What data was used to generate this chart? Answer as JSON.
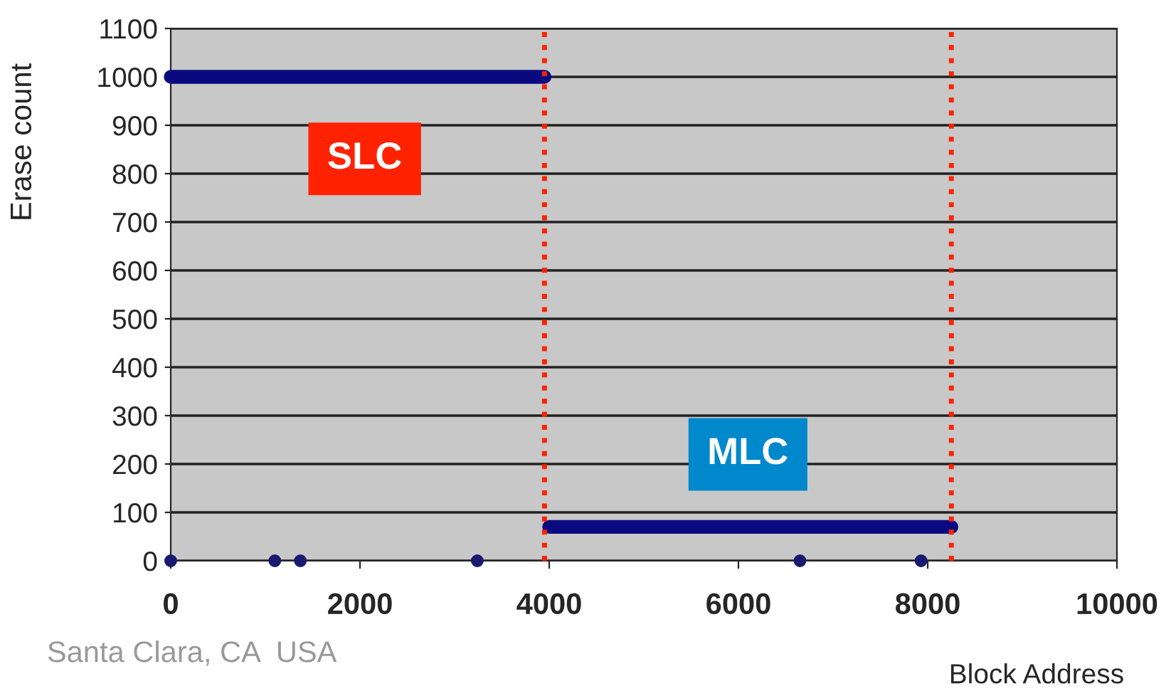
{
  "chart_data": {
    "type": "scatter",
    "xlabel": "Block Address",
    "ylabel": "Erase count",
    "xlim": [
      0,
      10000
    ],
    "xticks": [
      0,
      2000,
      4000,
      6000,
      8000,
      10000
    ],
    "ylim": [
      0,
      1100
    ],
    "yticks": [
      0,
      100,
      200,
      300,
      400,
      500,
      600,
      700,
      800,
      900,
      1000,
      1100
    ],
    "grid": "y",
    "legend": false,
    "series": [
      {
        "type": "line",
        "color": "#0a0a80",
        "x": [
          0,
          500,
          1000,
          1500,
          2000,
          2500,
          3000,
          3500,
          3950
        ],
        "values": [
          1000,
          1000,
          1000,
          1000,
          1000,
          1000,
          1000,
          1000,
          1000
        ]
      },
      {
        "type": "line",
        "color": "#0a0a80",
        "x": [
          4000,
          4500,
          5000,
          5500,
          6000,
          6500,
          7000,
          7500,
          8000,
          8250
        ],
        "values": [
          70,
          70,
          70,
          70,
          70,
          70,
          70,
          70,
          70,
          70
        ]
      },
      {
        "color": "#1a1a70",
        "x": [
          0,
          1100,
          1370,
          3240,
          6650,
          7930
        ],
        "values": [
          0,
          0,
          0,
          0,
          0,
          0
        ]
      }
    ],
    "ref_lines": [
      {
        "axis": "x",
        "value": 3950,
        "color": "#ff2200",
        "line_style": "dotted"
      },
      {
        "axis": "x",
        "value": 8250,
        "color": "#ff2200",
        "line_style": "dotted"
      }
    ],
    "annotations": [
      "SLC",
      "MLC",
      "Santa Clara, CA  USA"
    ]
  }
}
